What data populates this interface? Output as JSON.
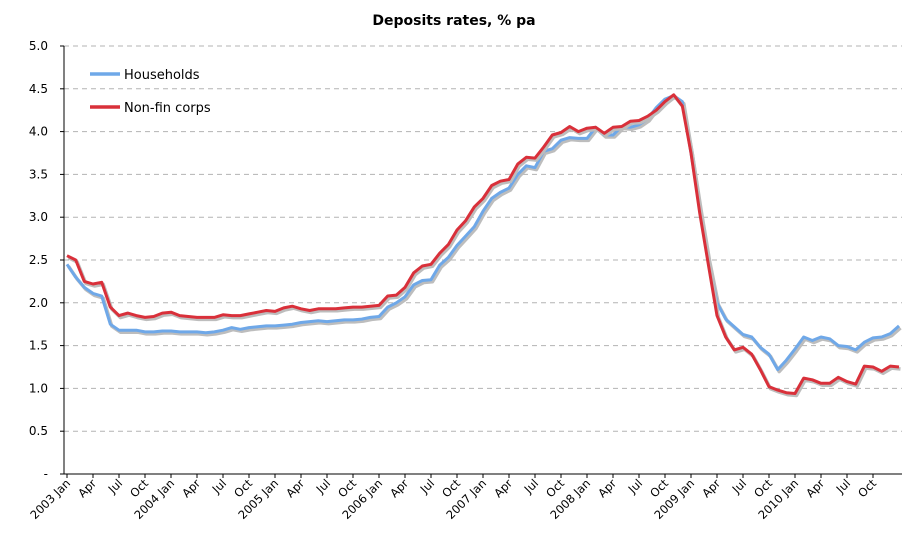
{
  "chart_data": {
    "type": "line",
    "title": "Deposits rates, % pa",
    "xlabel": "",
    "ylabel": "",
    "ylim": [
      0,
      5.0
    ],
    "yticks": [
      "-",
      "0.5",
      "1.0",
      "1.5",
      "2.0",
      "2.5",
      "3.0",
      "3.5",
      "4.0",
      "4.5",
      "5.0"
    ],
    "ytick_values": [
      0,
      0.5,
      1.0,
      1.5,
      2.0,
      2.5,
      3.0,
      3.5,
      4.0,
      4.5,
      5.0
    ],
    "x_tick_labels": [
      "2003 Jan",
      "Apr",
      "Jul",
      "Oct",
      "2004 Jan",
      "Apr",
      "Jul",
      "Oct",
      "2005 Jan",
      "Apr",
      "Jul",
      "Oct",
      "2006 Jan",
      "Apr",
      "Jul",
      "Oct",
      "2007 Jan",
      "Apr",
      "Jul",
      "Oct",
      "2008 Jan",
      "Apr",
      "Jul",
      "Oct",
      "2009 Jan",
      "Apr",
      "Jul",
      "Oct",
      "2010 Jan",
      "Apr",
      "Jul",
      "Oct"
    ],
    "x_start": "2003-01",
    "x_end": "2010-12",
    "grid": true,
    "legend_position": "top-left",
    "series": [
      {
        "name": "Households",
        "color": "#6fa8e8",
        "values": [
          2.45,
          2.3,
          2.18,
          2.11,
          2.08,
          1.75,
          1.68,
          1.68,
          1.68,
          1.66,
          1.66,
          1.67,
          1.67,
          1.66,
          1.66,
          1.66,
          1.65,
          1.66,
          1.68,
          1.71,
          1.69,
          1.71,
          1.72,
          1.73,
          1.73,
          1.74,
          1.75,
          1.77,
          1.78,
          1.79,
          1.78,
          1.79,
          1.8,
          1.8,
          1.81,
          1.83,
          1.84,
          1.95,
          2.0,
          2.07,
          2.21,
          2.26,
          2.27,
          2.44,
          2.53,
          2.67,
          2.78,
          2.89,
          3.07,
          3.22,
          3.29,
          3.34,
          3.5,
          3.6,
          3.58,
          3.77,
          3.8,
          3.9,
          3.93,
          3.92,
          3.92,
          4.05,
          3.96,
          3.96,
          4.06,
          4.05,
          4.08,
          4.15,
          4.28,
          4.38,
          4.42,
          4.35,
          3.75,
          3.1,
          2.5,
          2.0,
          1.81,
          1.72,
          1.63,
          1.6,
          1.48,
          1.4,
          1.22,
          1.33,
          1.46,
          1.6,
          1.56,
          1.6,
          1.58,
          1.5,
          1.49,
          1.45,
          1.54,
          1.59,
          1.6,
          1.64,
          1.73
        ]
      },
      {
        "name": "Non-fin corps",
        "color": "#d9303a",
        "values": [
          2.55,
          2.5,
          2.25,
          2.22,
          2.24,
          1.95,
          1.85,
          1.88,
          1.85,
          1.83,
          1.84,
          1.88,
          1.89,
          1.85,
          1.84,
          1.83,
          1.83,
          1.83,
          1.86,
          1.85,
          1.85,
          1.87,
          1.89,
          1.91,
          1.9,
          1.94,
          1.96,
          1.93,
          1.91,
          1.93,
          1.93,
          1.93,
          1.94,
          1.95,
          1.95,
          1.96,
          1.97,
          2.08,
          2.09,
          2.18,
          2.35,
          2.43,
          2.45,
          2.58,
          2.68,
          2.85,
          2.96,
          3.12,
          3.22,
          3.37,
          3.42,
          3.44,
          3.62,
          3.7,
          3.69,
          3.82,
          3.96,
          3.99,
          4.06,
          4.0,
          4.04,
          4.05,
          3.98,
          4.05,
          4.06,
          4.12,
          4.13,
          4.18,
          4.25,
          4.35,
          4.43,
          4.3,
          3.75,
          3.05,
          2.45,
          1.85,
          1.6,
          1.45,
          1.48,
          1.4,
          1.22,
          1.02,
          0.98,
          0.95,
          0.94,
          1.12,
          1.1,
          1.06,
          1.06,
          1.13,
          1.08,
          1.05,
          1.26,
          1.25,
          1.2,
          1.26,
          1.25
        ]
      }
    ]
  }
}
